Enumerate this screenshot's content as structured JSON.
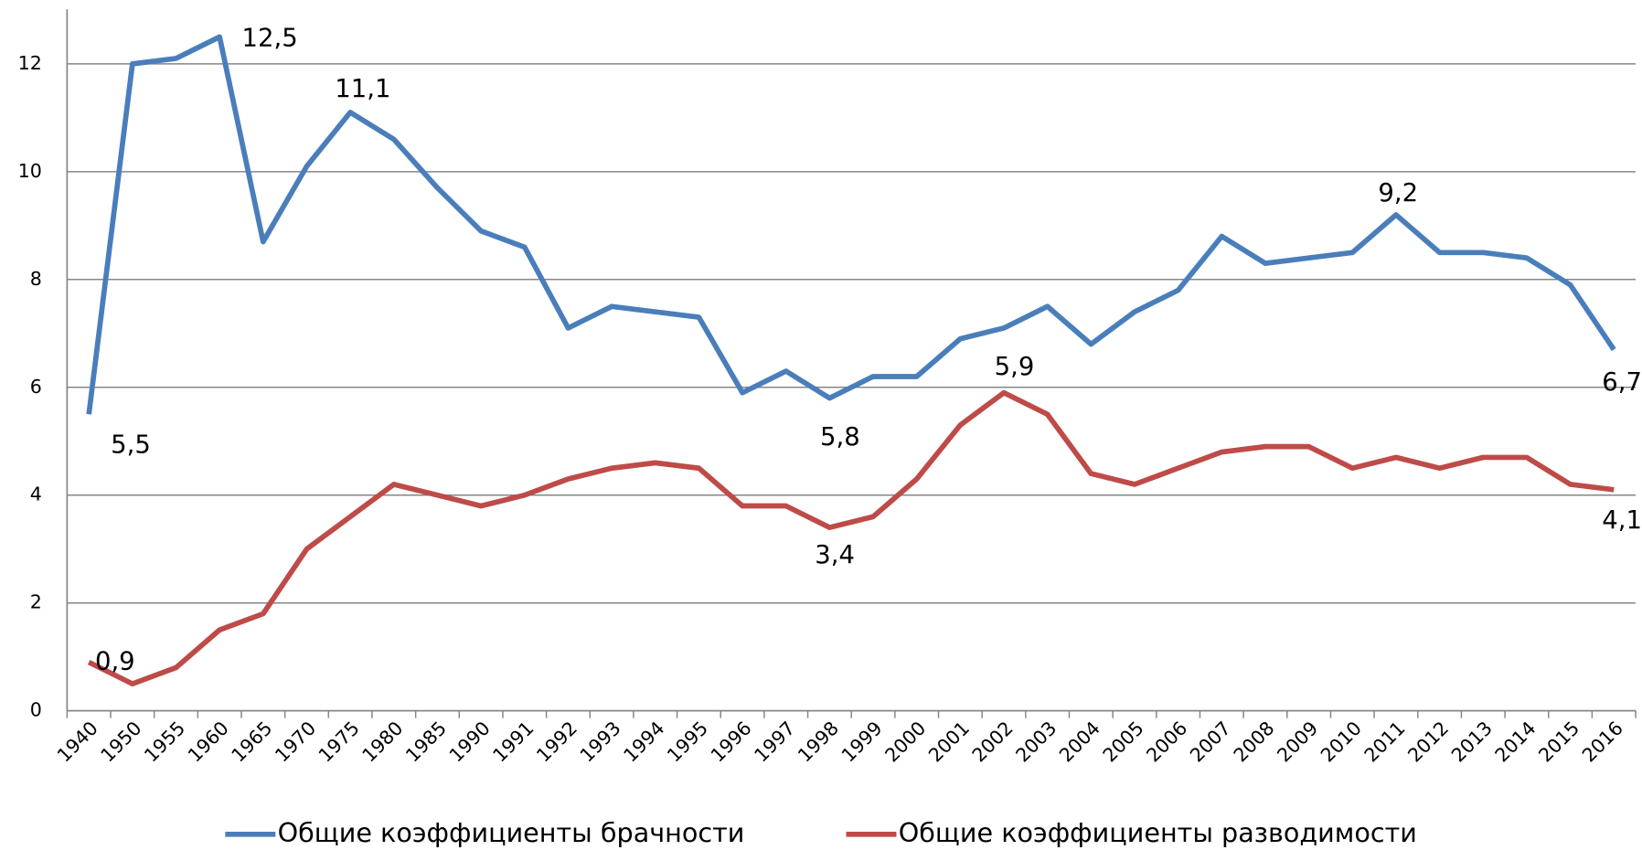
{
  "chart_data": {
    "type": "line",
    "categories": [
      "1940",
      "1950",
      "1955",
      "1960",
      "1965",
      "1970",
      "1975",
      "1980",
      "1985",
      "1990",
      "1991",
      "1992",
      "1993",
      "1994",
      "1995",
      "1996",
      "1997",
      "1998",
      "1999",
      "2000",
      "2001",
      "2002",
      "2003",
      "2004",
      "2005",
      "2006",
      "2007",
      "2008",
      "2009",
      "2010",
      "2011",
      "2012",
      "2013",
      "2014",
      "2015",
      "2016"
    ],
    "series": [
      {
        "name": "Общие коэффициенты брачности",
        "color": "#4a7ebb",
        "values": [
          5.5,
          12.0,
          12.1,
          12.5,
          8.7,
          10.1,
          11.1,
          10.6,
          9.7,
          8.9,
          8.6,
          7.1,
          7.5,
          7.4,
          7.3,
          5.9,
          6.3,
          5.8,
          6.2,
          6.2,
          6.9,
          7.1,
          7.5,
          6.8,
          7.4,
          7.8,
          8.8,
          8.3,
          8.4,
          8.5,
          9.2,
          8.5,
          8.5,
          8.4,
          7.9,
          6.7
        ],
        "value_labels": [
          "5,5",
          null,
          null,
          "12,5",
          null,
          null,
          "11,1",
          null,
          null,
          null,
          null,
          null,
          null,
          null,
          null,
          null,
          null,
          "5,8",
          null,
          null,
          null,
          null,
          null,
          null,
          null,
          null,
          null,
          null,
          null,
          null,
          "9,2",
          null,
          null,
          null,
          null,
          "6,7"
        ]
      },
      {
        "name": "Общие коэффициенты разводимости",
        "color": "#be4b48",
        "values": [
          0.9,
          0.5,
          0.8,
          1.5,
          1.8,
          3.0,
          3.6,
          4.2,
          4.0,
          3.8,
          4.0,
          4.3,
          4.5,
          4.6,
          4.5,
          3.8,
          3.8,
          3.4,
          3.6,
          4.3,
          5.3,
          5.9,
          5.5,
          4.4,
          4.2,
          4.5,
          4.8,
          4.9,
          4.9,
          4.5,
          4.7,
          4.5,
          4.7,
          4.7,
          4.2,
          4.1
        ],
        "value_labels": [
          "0,9",
          null,
          null,
          null,
          null,
          null,
          null,
          null,
          null,
          null,
          null,
          null,
          null,
          null,
          null,
          null,
          null,
          "3,4",
          null,
          null,
          null,
          "5,9",
          null,
          null,
          null,
          null,
          null,
          null,
          null,
          null,
          null,
          null,
          null,
          null,
          null,
          "4,1"
        ]
      }
    ],
    "ylim": [
      0,
      13
    ],
    "yticks": [
      0,
      2,
      4,
      6,
      8,
      10,
      12
    ],
    "grid": true,
    "legend": "bottom"
  }
}
